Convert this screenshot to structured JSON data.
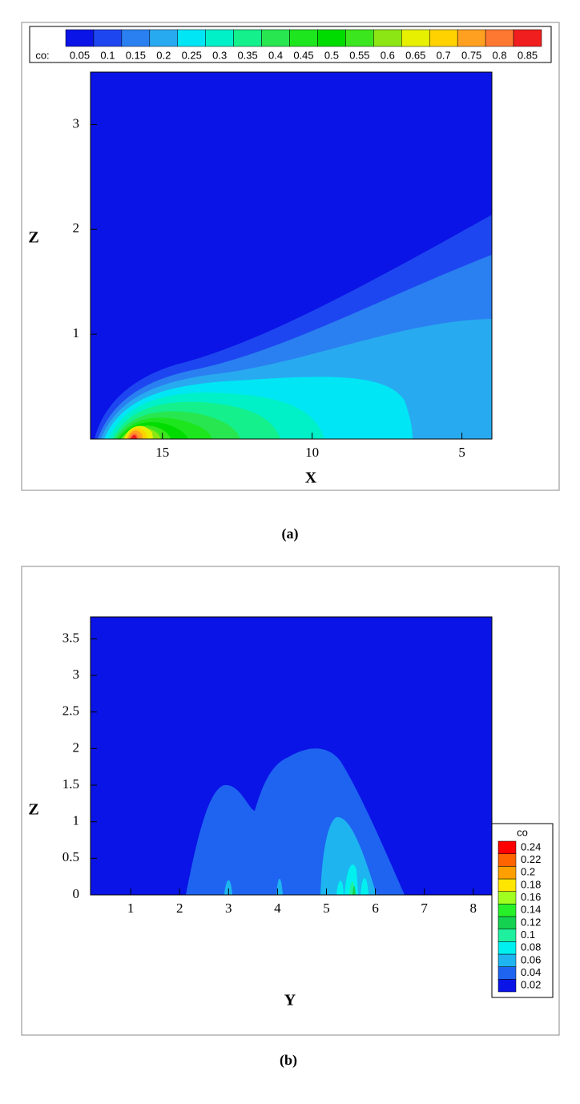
{
  "chart_data": [
    {
      "type": "contour",
      "x_label": "X",
      "y_label": "Z",
      "caption": "(a)",
      "xlim": [
        17.4,
        4.0
      ],
      "ylim": [
        0,
        3.5
      ],
      "xticks": [
        15,
        10,
        5
      ],
      "yticks": [
        1,
        2,
        3
      ],
      "legend": {
        "title": "co:",
        "position": "top",
        "levels": [
          0.05,
          0.1,
          0.15,
          0.2,
          0.25,
          0.3,
          0.35,
          0.4,
          0.45,
          0.5,
          0.55,
          0.6,
          0.65,
          0.7,
          0.75,
          0.8,
          0.85
        ],
        "colors": [
          "#0a14e6",
          "#1e46f0",
          "#2a80f0",
          "#28aaf0",
          "#00e6f5",
          "#00f0c8",
          "#14f08c",
          "#28e650",
          "#1ee61e",
          "#00dc00",
          "#3ce61e",
          "#8ce614",
          "#e6f000",
          "#ffd200",
          "#ffa020",
          "#ff7832",
          "#f01e1e"
        ]
      }
    },
    {
      "type": "contour",
      "x_label": "Y",
      "y_label": "Z",
      "caption": "(b)",
      "xlim": [
        0.18,
        8.38
      ],
      "ylim": [
        0,
        3.8
      ],
      "xticks": [
        1,
        2,
        3,
        4,
        5,
        6,
        7,
        8
      ],
      "yticks": [
        0,
        0.5,
        1,
        1.5,
        2,
        2.5,
        3,
        3.5
      ],
      "legend": {
        "title": "co",
        "position": "right",
        "levels": [
          0.02,
          0.04,
          0.06,
          0.08,
          0.1,
          0.12,
          0.14,
          0.16,
          0.18,
          0.2,
          0.22,
          0.24
        ],
        "colors": [
          "#0a14e6",
          "#1e64f0",
          "#1eb4f0",
          "#00f0f0",
          "#1ef0a0",
          "#14d250",
          "#28f028",
          "#a0ff1e",
          "#ffe600",
          "#ffa000",
          "#ff6400",
          "#ff0000"
        ]
      }
    }
  ]
}
